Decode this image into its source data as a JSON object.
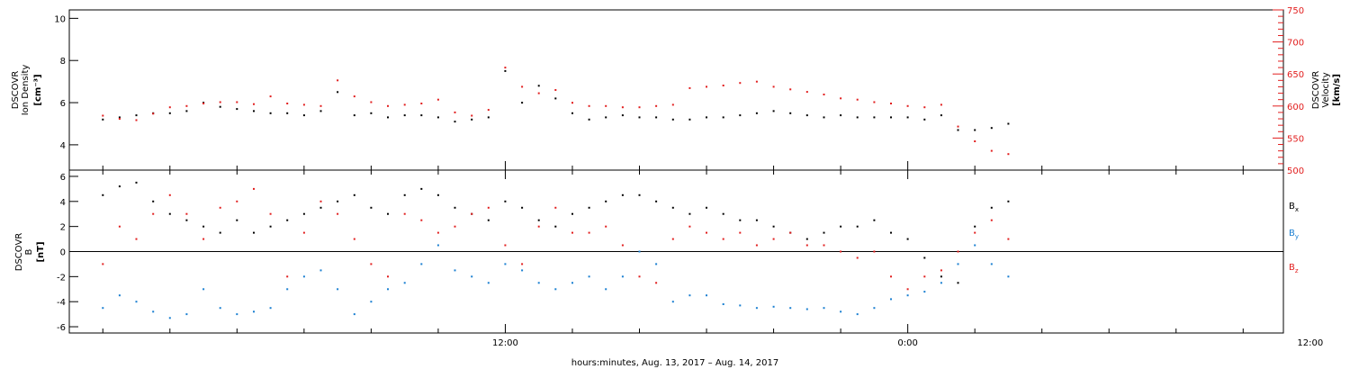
{
  "chart_data": [
    {
      "type": "scatter",
      "panel": "density-velocity",
      "left_axis": {
        "label_lines": [
          "DSCOVR",
          "Ion Density"
        ],
        "unit": "[cm⁻³]",
        "ylim": [
          2.8,
          10.4
        ],
        "ticks": [
          4,
          6,
          8,
          10
        ]
      },
      "right_axis": {
        "label_lines": [
          "DSCOVR",
          "Velocity"
        ],
        "unit": "[km/s]",
        "ylim": [
          500,
          750
        ],
        "ticks": [
          500,
          550,
          600,
          650,
          700,
          750
        ]
      },
      "series": [
        {
          "axis": "left",
          "color": "#000000",
          "x_hours": [
            0,
            0.5,
            1,
            1.5,
            2,
            2.5,
            3,
            3.5,
            4,
            4.5,
            5,
            5.5,
            6,
            6.5,
            7,
            7.5,
            8,
            8.5,
            9,
            9.5,
            10,
            10.5,
            11,
            11.5,
            12,
            12.5,
            13,
            13.5,
            14,
            14.5,
            15,
            15.5,
            16,
            16.5,
            17,
            17.5,
            18,
            18.5,
            19,
            19.5,
            20,
            20.5,
            21,
            21.5,
            22,
            22.5,
            23,
            23.5,
            24,
            24.5,
            25,
            25.5,
            26,
            26.5,
            27
          ],
          "values": [
            5.2,
            5.3,
            5.4,
            5.5,
            5.5,
            5.6,
            6.0,
            5.8,
            5.7,
            5.6,
            5.5,
            5.5,
            5.4,
            5.6,
            6.5,
            5.4,
            5.5,
            5.3,
            5.4,
            5.4,
            5.3,
            5.1,
            5.2,
            5.3,
            7.5,
            6.0,
            6.8,
            6.2,
            5.5,
            5.2,
            5.3,
            5.4,
            5.3,
            5.3,
            5.2,
            5.2,
            5.3,
            5.3,
            5.4,
            5.5,
            5.6,
            5.5,
            5.4,
            5.3,
            5.4,
            5.3,
            5.3,
            5.3,
            5.3,
            5.2,
            5.4,
            4.7,
            4.7,
            4.8,
            5.0
          ]
        },
        {
          "axis": "right",
          "color": "#e21e1e",
          "x_hours": [
            0,
            0.5,
            1,
            1.5,
            2,
            2.5,
            3,
            3.5,
            4,
            4.5,
            5,
            5.5,
            6,
            6.5,
            7,
            7.5,
            8,
            8.5,
            9,
            9.5,
            10,
            10.5,
            11,
            11.5,
            12,
            12.5,
            13,
            13.5,
            14,
            14.5,
            15,
            15.5,
            16,
            16.5,
            17,
            17.5,
            18,
            18.5,
            19,
            19.5,
            20,
            20.5,
            21,
            21.5,
            22,
            22.5,
            23,
            23.5,
            24,
            24.5,
            25,
            25.5,
            26,
            26.5,
            27
          ],
          "values": [
            585,
            580,
            578,
            588,
            598,
            600,
            604,
            606,
            606,
            603,
            615,
            604,
            602,
            600,
            640,
            615,
            606,
            600,
            602,
            604,
            610,
            590,
            585,
            594,
            660,
            630,
            620,
            625,
            605,
            600,
            600,
            598,
            598,
            600,
            602,
            628,
            630,
            632,
            636,
            638,
            630,
            626,
            622,
            618,
            612,
            610,
            606,
            604,
            600,
            598,
            602,
            568,
            545,
            530,
            525
          ]
        }
      ]
    },
    {
      "type": "scatter",
      "panel": "magnetic-field",
      "left_axis": {
        "label_lines": [
          "DSCOVR",
          "B"
        ],
        "unit": "[nT]",
        "ylim": [
          -6.5,
          6.5
        ],
        "ticks": [
          -6,
          -4,
          -2,
          0,
          2,
          4,
          6
        ]
      },
      "zero_line": true,
      "series": [
        {
          "name": "Bx",
          "color": "#000000",
          "x_hours": [
            0,
            0.5,
            1,
            1.5,
            2,
            2.5,
            3,
            3.5,
            4,
            4.5,
            5,
            5.5,
            6,
            6.5,
            7,
            7.5,
            8,
            8.5,
            9,
            9.5,
            10,
            10.5,
            11,
            11.5,
            12,
            12.5,
            13,
            13.5,
            14,
            14.5,
            15,
            15.5,
            16,
            16.5,
            17,
            17.5,
            18,
            18.5,
            19,
            19.5,
            20,
            20.5,
            21,
            21.5,
            22,
            22.5,
            23,
            23.5,
            24,
            24.5,
            25,
            25.5,
            26,
            26.5,
            27
          ],
          "values": [
            4.5,
            5.2,
            5.5,
            4.0,
            3.0,
            2.5,
            2.0,
            1.5,
            2.5,
            1.5,
            2.0,
            2.5,
            3.0,
            3.5,
            4.0,
            4.5,
            3.5,
            3.0,
            4.5,
            5.0,
            4.5,
            3.5,
            3.0,
            2.5,
            4.0,
            3.5,
            2.5,
            2.0,
            3.0,
            3.5,
            4.0,
            4.5,
            4.5,
            4.0,
            3.5,
            3.0,
            3.5,
            3.0,
            2.5,
            2.5,
            2.0,
            1.5,
            1.0,
            1.5,
            2.0,
            2.0,
            2.5,
            1.5,
            1.0,
            -0.5,
            -2.0,
            -2.5,
            2.0,
            3.5,
            4.0
          ]
        },
        {
          "name": "By",
          "color": "#1a7fd1",
          "x_hours": [
            0,
            0.5,
            1,
            1.5,
            2,
            2.5,
            3,
            3.5,
            4,
            4.5,
            5,
            5.5,
            6,
            6.5,
            7,
            7.5,
            8,
            8.5,
            9,
            9.5,
            10,
            10.5,
            11,
            11.5,
            12,
            12.5,
            13,
            13.5,
            14,
            14.5,
            15,
            15.5,
            16,
            16.5,
            17,
            17.5,
            18,
            18.5,
            19,
            19.5,
            20,
            20.5,
            21,
            21.5,
            22,
            22.5,
            23,
            23.5,
            24,
            24.5,
            25,
            25.5,
            26,
            26.5,
            27
          ],
          "values": [
            -4.5,
            -3.5,
            -4.0,
            -4.8,
            -5.3,
            -5.0,
            -3.0,
            -4.5,
            -5.0,
            -4.8,
            -4.5,
            -3.0,
            -2.0,
            -1.5,
            -3.0,
            -5.0,
            -4.0,
            -3.0,
            -2.5,
            -1.0,
            0.5,
            -1.5,
            -2.0,
            -2.5,
            -1.0,
            -1.5,
            -2.5,
            -3.0,
            -2.5,
            -2.0,
            -3.0,
            -2.0,
            0.0,
            -1.0,
            -4.0,
            -3.5,
            -3.5,
            -4.2,
            -4.3,
            -4.5,
            -4.4,
            -4.5,
            -4.6,
            -4.5,
            -4.8,
            -5.0,
            -4.5,
            -3.8,
            -3.5,
            -3.2,
            -2.5,
            -1.0,
            0.5,
            -1.0,
            -2.0
          ]
        },
        {
          "name": "Bz",
          "color": "#e21e1e",
          "x_hours": [
            0,
            0.5,
            1,
            1.5,
            2,
            2.5,
            3,
            3.5,
            4,
            4.5,
            5,
            5.5,
            6,
            6.5,
            7,
            7.5,
            8,
            8.5,
            9,
            9.5,
            10,
            10.5,
            11,
            11.5,
            12,
            12.5,
            13,
            13.5,
            14,
            14.5,
            15,
            15.5,
            16,
            16.5,
            17,
            17.5,
            18,
            18.5,
            19,
            19.5,
            20,
            20.5,
            21,
            21.5,
            22,
            22.5,
            23,
            23.5,
            24,
            24.5,
            25,
            25.5,
            26,
            26.5,
            27
          ],
          "values": [
            -1.0,
            2.0,
            1.0,
            3.0,
            4.5,
            3.0,
            1.0,
            3.5,
            4.0,
            5.0,
            3.0,
            -2.0,
            1.5,
            4.0,
            3.0,
            1.0,
            -1.0,
            -2.0,
            3.0,
            2.5,
            1.5,
            2.0,
            3.0,
            3.5,
            0.5,
            -1.0,
            2.0,
            3.5,
            1.5,
            1.5,
            2.0,
            0.5,
            -2.0,
            -2.5,
            1.0,
            2.0,
            1.5,
            1.0,
            1.5,
            0.5,
            1.0,
            1.5,
            0.5,
            0.5,
            0.0,
            -0.5,
            0.0,
            -2.0,
            -3.0,
            -2.0,
            -1.5,
            0.0,
            1.5,
            2.5,
            1.0
          ]
        }
      ],
      "legend": [
        {
          "label": "B",
          "sub": "x",
          "color": "#000000"
        },
        {
          "label": "B",
          "sub": "y",
          "color": "#1a7fd1"
        },
        {
          "label": "B",
          "sub": "z",
          "color": "#e21e1e"
        }
      ]
    }
  ],
  "x_axis": {
    "tick_labels": [
      "12:00",
      "0:00",
      "12:00"
    ],
    "tick_hours": [
      12,
      24,
      36
    ],
    "minor_tick_step_hours": 2,
    "range_hours": [
      -1,
      35.2
    ],
    "title": "hours:minutes, Aug. 13, 2017 – Aug. 14, 2017"
  }
}
